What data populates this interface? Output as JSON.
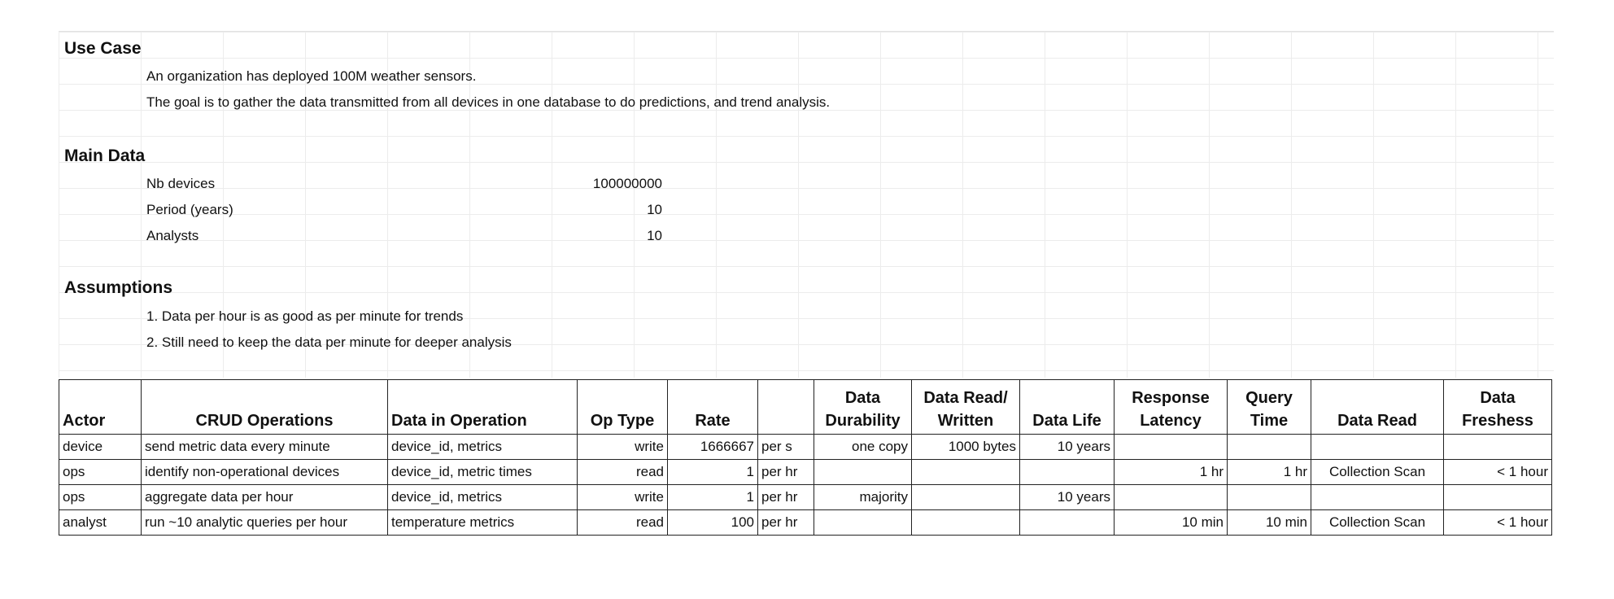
{
  "use_case": {
    "title": "Use Case",
    "lines": [
      "An organization has deployed 100M weather sensors.",
      "The goal is to gather the data transmitted from all devices in one database to do predictions, and trend analysis."
    ]
  },
  "main_data": {
    "title": "Main Data",
    "rows": [
      {
        "label": "Nb devices",
        "value": "100000000"
      },
      {
        "label": "Period (years)",
        "value": "10"
      },
      {
        "label": "Analysts",
        "value": "10"
      }
    ]
  },
  "assumptions": {
    "title": "Assumptions",
    "lines": [
      "1. Data per hour is as good as per minute for trends",
      "2. Still need to keep the data per minute for deeper analysis"
    ]
  },
  "table": {
    "headers": {
      "actor": "Actor",
      "crud": "CRUD Operations",
      "data_in_op": "Data in Operation",
      "op_type": "Op Type",
      "rate": "Rate",
      "rate_unit": "",
      "durability_1": "Data",
      "durability_2": "Durability",
      "read_written_1": "Data Read/",
      "read_written_2": "Written",
      "data_life": "Data Life",
      "latency_1": "Response",
      "latency_2": "Latency",
      "query_time_1": "Query",
      "query_time_2": "Time",
      "data_read": "Data Read",
      "freshness_1": "Data",
      "freshness_2": "Freshess"
    },
    "rows": [
      {
        "actor": "device",
        "crud": "send metric data every minute",
        "data": "device_id, metrics",
        "op": "write",
        "rate": "1666667",
        "unit": "per s",
        "durability": "one copy",
        "rw": "1000 bytes",
        "life": "10 years",
        "latency": "",
        "query": "",
        "read": "",
        "fresh": ""
      },
      {
        "actor": "ops",
        "crud": "identify non-operational devices",
        "data": "device_id, metric times",
        "op": "read",
        "rate": "1",
        "unit": "per hr",
        "durability": "",
        "rw": "",
        "life": "",
        "latency": "1 hr",
        "query": "1 hr",
        "read": "Collection Scan",
        "fresh": "< 1 hour"
      },
      {
        "actor": "ops",
        "crud": "aggregate data per hour",
        "data": "device_id, metrics",
        "op": "write",
        "rate": "1",
        "unit": "per hr",
        "durability": "majority",
        "rw": "",
        "life": "10 years",
        "latency": "",
        "query": "",
        "read": "",
        "fresh": ""
      },
      {
        "actor": "analyst",
        "crud": "run ~10 analytic queries per hour",
        "data": "temperature metrics",
        "op": "read",
        "rate": "100",
        "unit": "per hr",
        "durability": "",
        "rw": "",
        "life": "",
        "latency": "10 min",
        "query": "10 min",
        "read": "Collection Scan",
        "fresh": "< 1 hour"
      }
    ]
  }
}
